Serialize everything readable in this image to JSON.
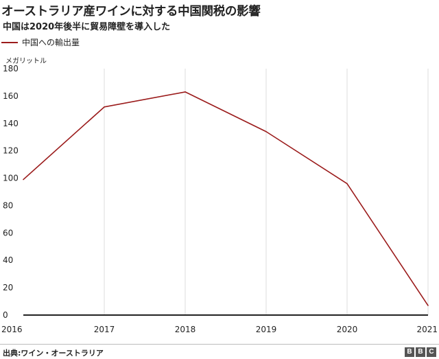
{
  "title": "オーストラリア産ワインに対する中国関税の影響",
  "subtitle": "中国は2020年後半に貿易障壁を導入した",
  "source": "出典:ワイン・オーストラリア",
  "logo": [
    "B",
    "B",
    "C"
  ],
  "colors": {
    "line": "#9b1b1b",
    "grid": "#dddddd",
    "axis": "#222222"
  },
  "chart_data": {
    "type": "line",
    "title": "オーストラリア産ワインに対する中国関税の影響",
    "subtitle": "中国は2020年後半に貿易障壁を導入した",
    "ylabel": "メガリットル",
    "xlabel": "",
    "ylim": [
      0,
      180
    ],
    "yticks": [
      0,
      20,
      40,
      60,
      80,
      100,
      120,
      140,
      160,
      180
    ],
    "x": [
      "2016",
      "2017",
      "2018",
      "2019",
      "2020",
      "2021"
    ],
    "series": [
      {
        "name": "中国への輸出量",
        "values": [
          99,
          152,
          163,
          134,
          96,
          7
        ]
      }
    ],
    "legend": "top-left",
    "grid": "vertical"
  }
}
